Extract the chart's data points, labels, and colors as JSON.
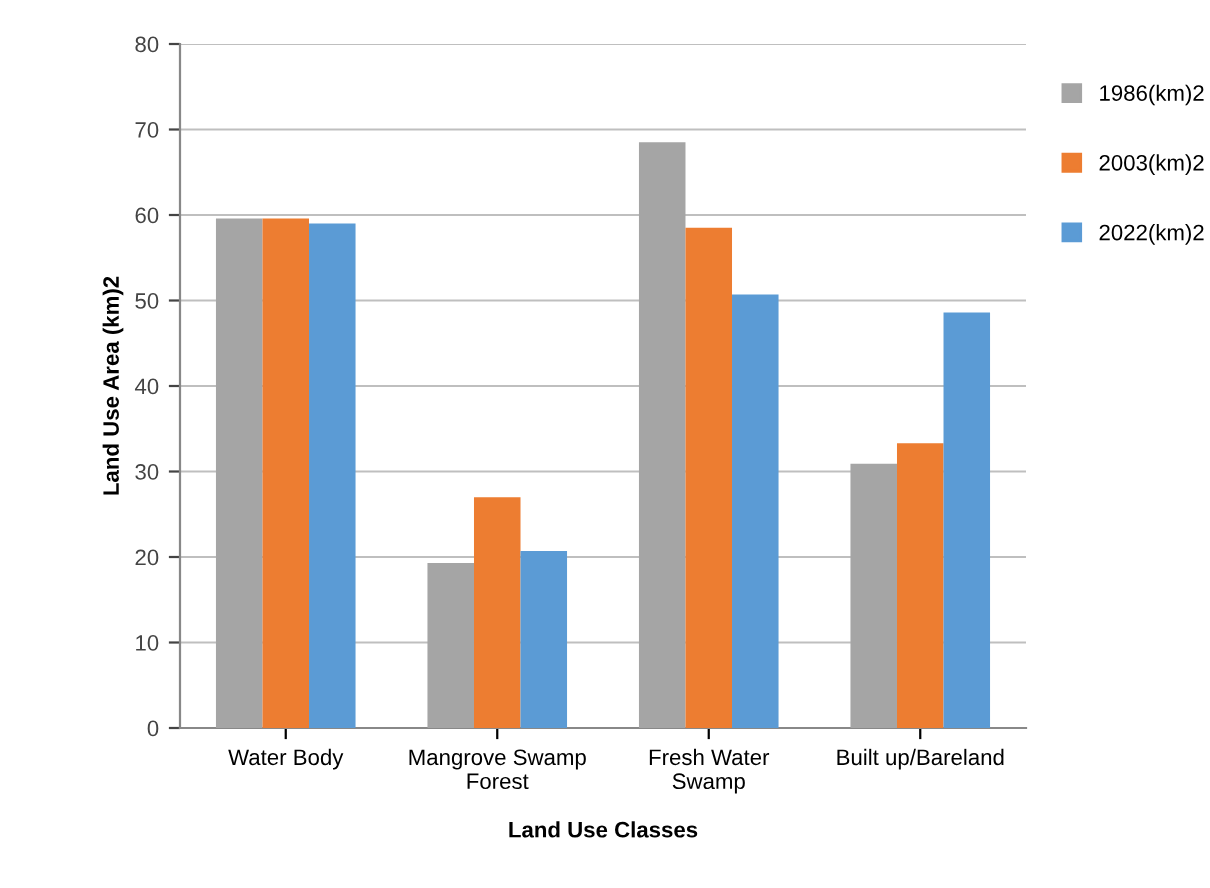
{
  "chart_data": {
    "type": "bar",
    "xlabel": "Land Use Classes",
    "ylabel": "Land Use Area (km)2",
    "categories": [
      "Water Body",
      "Mangrove Swamp\nForest",
      "Fresh Water\nSwamp",
      "Built up/Bareland"
    ],
    "series": [
      {
        "name": "1986(km)2",
        "color": "#a5a5a5",
        "values": [
          59.6,
          19.3,
          68.5,
          30.9
        ]
      },
      {
        "name": "2003(km)2",
        "color": "#ed7d31",
        "values": [
          59.6,
          27.0,
          58.5,
          33.3
        ]
      },
      {
        "name": "2022(km)2",
        "color": "#5b9bd5",
        "values": [
          59.0,
          20.7,
          50.7,
          48.6
        ]
      }
    ],
    "ylim": [
      0,
      80
    ],
    "yticks": [
      0,
      10,
      20,
      30,
      40,
      50,
      60,
      70,
      80
    ],
    "grid": "y",
    "legend": "top right"
  }
}
